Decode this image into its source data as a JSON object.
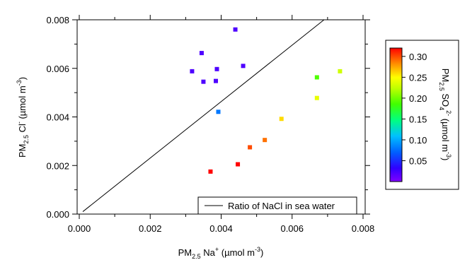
{
  "chart_data": {
    "type": "scatter",
    "title": "",
    "xlabel": {
      "base": "PM",
      "sub": "2.5",
      "mid": " Na",
      "sup": "+",
      "end": " (µmol m",
      "sup2": "-3",
      "tail": ")"
    },
    "ylabel": {
      "base": "PM",
      "sub": "2.5",
      "mid": " Cl",
      "sup": "-",
      "end": " (µmol m",
      "sup2": "-3",
      "tail": ")"
    },
    "xlim": [
      0.0,
      0.008
    ],
    "ylim": [
      0.0,
      0.008
    ],
    "x_ticks": [
      "0.000",
      "0.002",
      "0.004",
      "0.006",
      "0.008"
    ],
    "y_ticks": [
      "0.000",
      "0.002",
      "0.004",
      "0.006",
      "0.008"
    ],
    "grid": false,
    "legend": {
      "placement": "bottom-right",
      "entries": [
        "Ratio of NaCl in sea water"
      ]
    },
    "reference_line": {
      "name": "Ratio of NaCl in sea water",
      "x": [
        0.0001,
        0.0069
      ],
      "y": [
        0.0001,
        0.008
      ]
    },
    "colorbar": {
      "label": {
        "base": "PM",
        "sub": "2.5",
        "mid": " SO",
        "sub2": "4",
        "sup": "2-",
        "end": " (µmol m",
        "sup2": "-3",
        "tail": ")"
      },
      "range": [
        0.0,
        0.32
      ],
      "ticks": [
        "0.05",
        "0.10",
        "0.15",
        "0.20",
        "0.25",
        "0.30"
      ],
      "colormap": "rainbow"
    },
    "points": [
      {
        "x": 0.00318,
        "y": 0.00588,
        "c": 0.02
      },
      {
        "x": 0.00345,
        "y": 0.00663,
        "c": 0.02
      },
      {
        "x": 0.0035,
        "y": 0.00545,
        "c": 0.02
      },
      {
        "x": 0.00385,
        "y": 0.00548,
        "c": 0.02
      },
      {
        "x": 0.00388,
        "y": 0.00597,
        "c": 0.02
      },
      {
        "x": 0.0044,
        "y": 0.0076,
        "c": 0.02
      },
      {
        "x": 0.00462,
        "y": 0.0061,
        "c": 0.02
      },
      {
        "x": 0.00392,
        "y": 0.00421,
        "c": 0.08
      },
      {
        "x": 0.0037,
        "y": 0.00175,
        "c": 0.32
      },
      {
        "x": 0.00447,
        "y": 0.00205,
        "c": 0.32
      },
      {
        "x": 0.00481,
        "y": 0.00275,
        "c": 0.3
      },
      {
        "x": 0.00523,
        "y": 0.00305,
        "c": 0.29
      },
      {
        "x": 0.0057,
        "y": 0.00392,
        "c": 0.26
      },
      {
        "x": 0.0067,
        "y": 0.00563,
        "c": 0.19
      },
      {
        "x": 0.0067,
        "y": 0.00478,
        "c": 0.24
      },
      {
        "x": 0.00735,
        "y": 0.00588,
        "c": 0.23
      }
    ]
  },
  "colors": {
    "line": "#000000",
    "frame": "#000000",
    "background": "#ffffff"
  }
}
